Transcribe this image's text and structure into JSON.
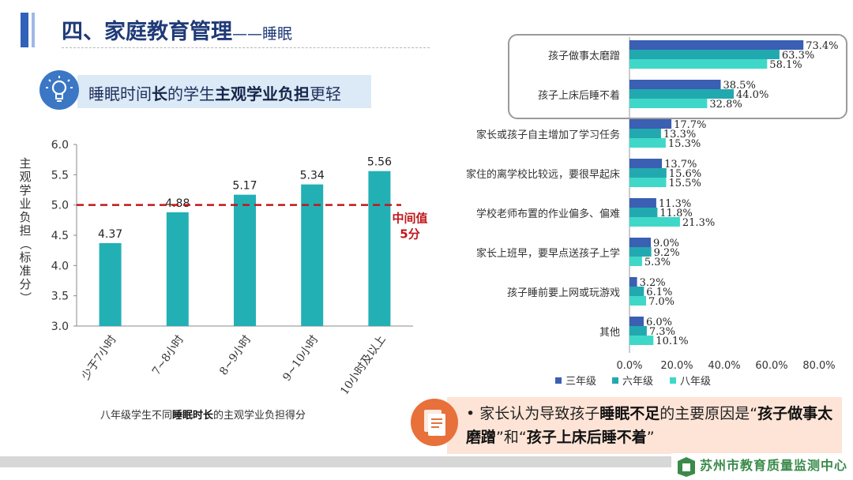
{
  "header": {
    "title": "四、家庭教育管理",
    "subtitle": "——睡眠"
  },
  "subheading": {
    "part1": "睡眠时间",
    "part2": "长",
    "part3": "的学生",
    "part4": "主观学业负担",
    "part5": "更轻"
  },
  "colors": {
    "brand_blue": "#2f62b8",
    "teal": "#22b0b5",
    "median_line": "#c0171b",
    "series_grade3": "#3a5fb3",
    "series_grade6": "#22a9b0",
    "series_grade8": "#3fd8c8",
    "callout_orange": "#e8703a"
  },
  "chart_data": [
    {
      "type": "bar",
      "title": "八年级学生不同睡眠时长的主观学业负担得分",
      "title_parts": {
        "a": "八年级学生不同",
        "b": "睡眠时长",
        "c": "的主观学业负担得分"
      },
      "categories": [
        "少于7小时",
        "7~8小时",
        "8~9小时",
        "9~10小时",
        "10小时及以上"
      ],
      "values": [
        4.37,
        4.88,
        5.17,
        5.34,
        5.56
      ],
      "value_labels": [
        "4.37",
        "4.88",
        "5.17",
        "5.34",
        "5.56"
      ],
      "ylabel": "主观学业负担（标准分）",
      "ylim": [
        3.0,
        6.0
      ],
      "yticks": [
        3.0,
        3.5,
        4.0,
        4.5,
        5.0,
        5.5,
        6.0
      ],
      "ytick_labels": [
        "3.0",
        "3.5",
        "4.0",
        "4.5",
        "5.0",
        "5.5",
        "6.0"
      ],
      "reference_line": {
        "value": 5.0,
        "label_line1": "中间值",
        "label_line2": "5分"
      }
    },
    {
      "type": "bar",
      "orientation": "horizontal",
      "categories": [
        "孩子做事太磨蹭",
        "孩子上床后睡不着",
        "家长或孩子自主增加了学习任务",
        "家住的离学校比较远，要很早起床",
        "学校老师布置的作业偏多、偏难",
        "家长上班早，要早点送孩子上学",
        "孩子睡前要上网或玩游戏",
        "其他"
      ],
      "series": [
        {
          "name": "三年级",
          "values": [
            73.4,
            38.5,
            17.7,
            13.7,
            11.3,
            9.0,
            3.2,
            6.0
          ],
          "labels": [
            "73.4%",
            "38.5%",
            "17.7%",
            "13.7%",
            "11.3%",
            "9.0%",
            "3.2%",
            "6.0%"
          ]
        },
        {
          "name": "六年级",
          "values": [
            63.3,
            44.0,
            13.3,
            15.6,
            11.8,
            9.2,
            6.1,
            7.3
          ],
          "labels": [
            "63.3%",
            "44.0%",
            "13.3%",
            "15.6%",
            "11.8%",
            "9.2%",
            "6.1%",
            "7.3%"
          ]
        },
        {
          "name": "八年级",
          "values": [
            58.1,
            32.8,
            15.3,
            15.5,
            21.3,
            5.3,
            7.0,
            10.1
          ],
          "labels": [
            "58.1%",
            "32.8%",
            "15.3%",
            "15.5%",
            "21.3%",
            "5.3%",
            "7.0%",
            "10.1%"
          ]
        }
      ],
      "xlim": [
        0,
        80
      ],
      "xticks": [
        0,
        20,
        40,
        60,
        80
      ],
      "xtick_labels": [
        "0.0%",
        "20.0%",
        "40.0%",
        "60.0%",
        "80.0%"
      ],
      "legend_position": "bottom"
    }
  ],
  "callout": {
    "bullet": "•",
    "t1": "家长认为导致孩子",
    "t2": "睡眠不足",
    "t3": "的主要原因是“",
    "t4": "孩子做事太磨蹭",
    "t5": "”和“",
    "t6": "孩子上床后睡不着",
    "t7": "”"
  },
  "footer": {
    "org": "苏州市教育质量监测中心"
  }
}
